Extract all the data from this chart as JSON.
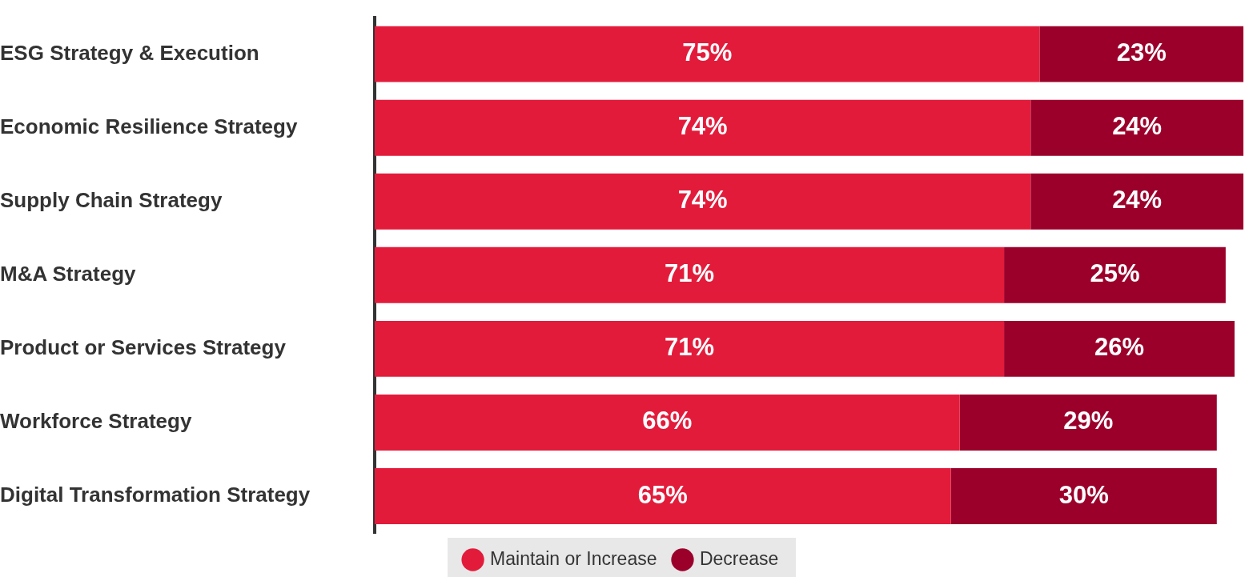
{
  "chart_data": {
    "type": "bar",
    "orientation": "horizontal",
    "stacked": true,
    "categories": [
      "ESG Strategy & Execution",
      "Economic Resilience Strategy",
      "Supply Chain Strategy",
      "M&A Strategy",
      "Product or Services Strategy",
      "Workforce Strategy",
      "Digital Transformation Strategy"
    ],
    "series": [
      {
        "name": "Maintain or Increase",
        "color": "#e31b3b",
        "values": [
          75,
          74,
          74,
          71,
          71,
          66,
          65
        ],
        "value_labels": [
          "75%",
          "74%",
          "74%",
          "71%",
          "71%",
          "66%",
          "65%"
        ]
      },
      {
        "name": "Decrease",
        "color": "#9b002b",
        "values": [
          23,
          24,
          24,
          25,
          26,
          29,
          30
        ],
        "value_labels": [
          "23%",
          "24%",
          "24%",
          "25%",
          "26%",
          "29%",
          "30%"
        ]
      }
    ],
    "legend": "bottom",
    "tick_labels": "y"
  }
}
